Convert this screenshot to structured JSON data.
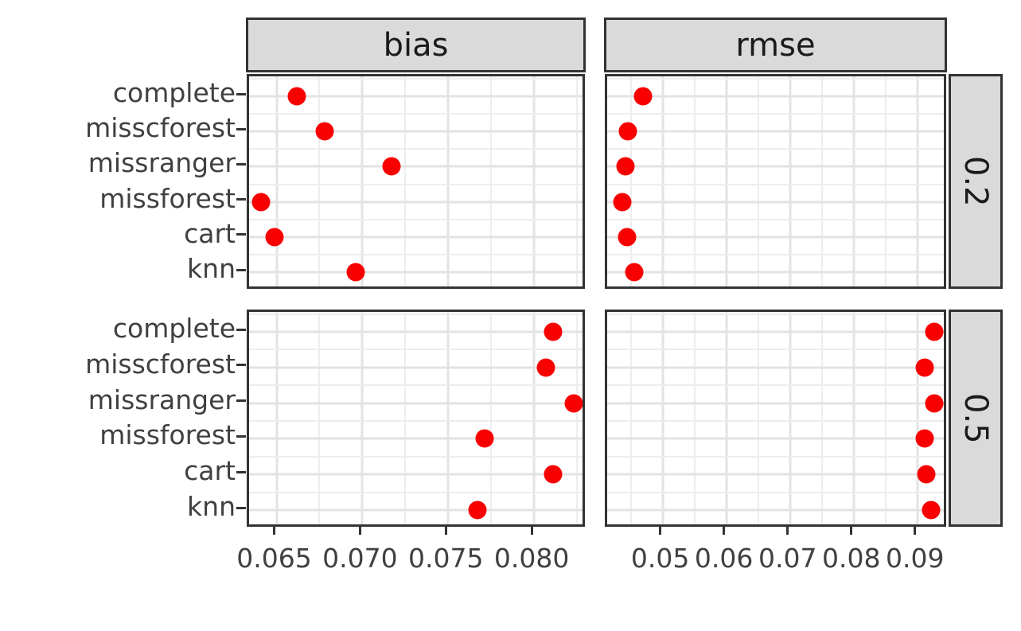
{
  "figure": {
    "background": "#FFFFFF",
    "point_color": "#F80000",
    "strip_fill": "#DADADA",
    "strip_border": "#333333",
    "panel_border": "#333333",
    "grid_major_color": "#E3E3E3",
    "grid_minor_color": "#EDEDED",
    "axis_text_color": "#404040",
    "strip_text_color": "#1A1A1A",
    "tick_color": "#333333"
  },
  "chart_data": {
    "type": "scatter",
    "style": "faceted dot plot (ggplot2-like facet_grid: rows = missingness proportion, cols = metric)",
    "legend": "none",
    "grid": true,
    "point_shape": "filled circle",
    "facets": {
      "cols": [
        "bias",
        "rmse"
      ],
      "rows": [
        "0.2",
        "0.5"
      ]
    },
    "categories": [
      "complete",
      "misscforest",
      "missranger",
      "missforest",
      "cart",
      "knn"
    ],
    "x_axes": {
      "bias": {
        "domain": [
          0.0634,
          0.0831
        ],
        "ticks": [
          0.065,
          0.07,
          0.075,
          0.08
        ],
        "tick_labels": [
          "0.065",
          "0.070",
          "0.075",
          "0.080"
        ],
        "minor": [
          0.0675,
          0.0725,
          0.0775,
          0.0825
        ]
      },
      "rmse": {
        "domain": [
          0.0413,
          0.0949
        ],
        "ticks": [
          0.05,
          0.06,
          0.07,
          0.08,
          0.09
        ],
        "tick_labels": [
          "0.05",
          "0.06",
          "0.07",
          "0.08",
          "0.09"
        ],
        "minor": [
          0.045,
          0.055,
          0.065,
          0.075,
          0.085,
          0.095
        ]
      }
    },
    "panels": [
      {
        "col": "bias",
        "row": "0.2",
        "values": [
          0.0662,
          0.0678,
          0.0717,
          0.0641,
          0.0649,
          0.0696
        ]
      },
      {
        "col": "rmse",
        "row": "0.2",
        "values": [
          0.0469,
          0.0445,
          0.0442,
          0.0437,
          0.0444,
          0.0456
        ]
      },
      {
        "col": "bias",
        "row": "0.5",
        "values": [
          0.0811,
          0.0807,
          0.0823,
          0.0771,
          0.0811,
          0.0767
        ]
      },
      {
        "col": "rmse",
        "row": "0.5",
        "values": [
          0.0926,
          0.0912,
          0.0926,
          0.0912,
          0.0914,
          0.0922
        ]
      }
    ]
  }
}
